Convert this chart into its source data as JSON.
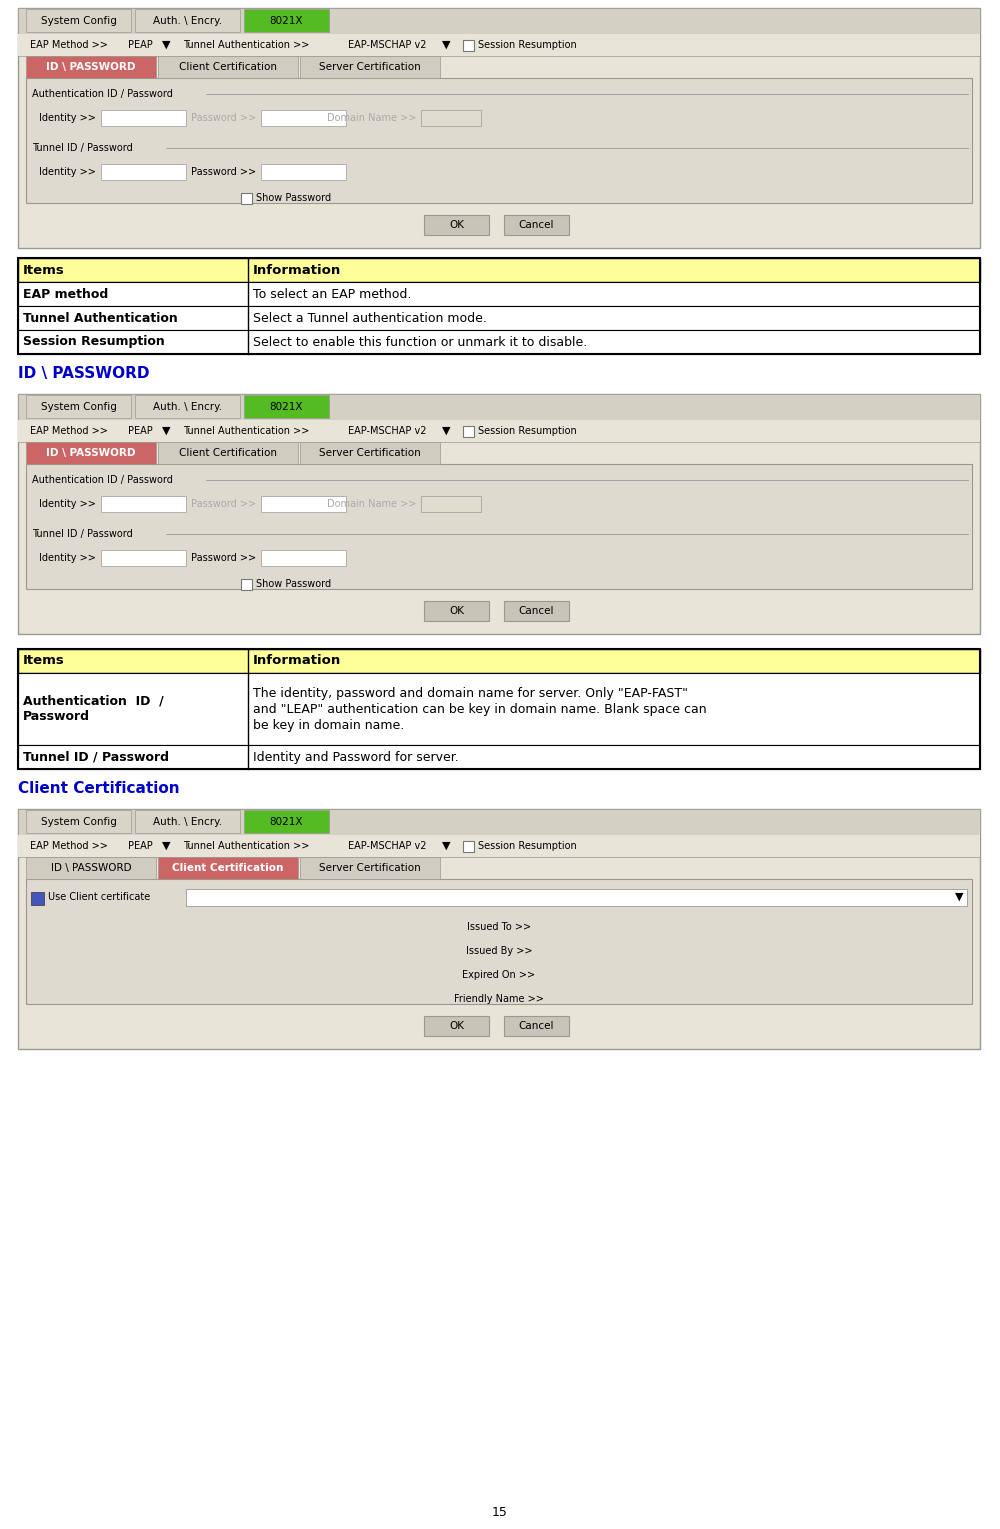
{
  "bg_color": "#ffffff",
  "table1_header": [
    "Items",
    "Information"
  ],
  "table1_header_bg": "#ffff99",
  "table1_rows": [
    [
      "EAP method",
      "To select an EAP method."
    ],
    [
      "Tunnel Authentication",
      "Select a Tunnel authentication mode."
    ],
    [
      "Session Resumption",
      "Select to enable this function or unmark it to disable."
    ]
  ],
  "table2_header": [
    "Items",
    "Information"
  ],
  "table2_header_bg": "#ffff99",
  "table2_rows": [
    [
      "Authentication  ID  /\nPassword",
      "The identity, password and domain name for server. Only \"EAP-FAST\"\nand \"LEAP\" authentication can be key in domain name. Blank space can\nbe key in domain name."
    ],
    [
      "Tunnel ID / Password",
      "Identity and Password for server."
    ]
  ],
  "section1_label": "ID \\ PASSWORD",
  "section2_label": "Client Certification",
  "label_color": "#0000cc",
  "tab_green": "#55bb22",
  "tab_red_active": "#cc6666",
  "ui_outer_bg": "#e8e4d8",
  "ui_bar_bg": "#d4d0c4",
  "ui_inner_bg": "#dedad0",
  "border_color": "#999990",
  "page_num": "15"
}
